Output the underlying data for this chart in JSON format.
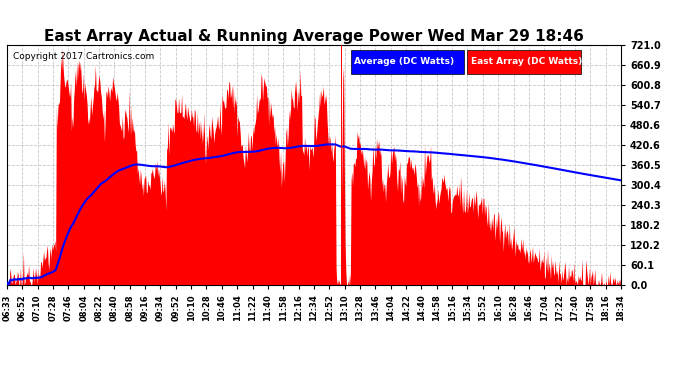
{
  "title": "East Array Actual & Running Average Power Wed Mar 29 18:46",
  "copyright": "Copyright 2017 Cartronics.com",
  "ylabel_right_max": 721.0,
  "ylabel_right_ticks": [
    0.0,
    60.1,
    120.2,
    180.2,
    240.3,
    300.4,
    360.5,
    420.6,
    480.6,
    540.7,
    600.8,
    660.9,
    721.0
  ],
  "legend_labels": [
    "Average (DC Watts)",
    "East Array (DC Watts)"
  ],
  "legend_colors_bg": [
    "blue",
    "red"
  ],
  "legend_colors_text": [
    "white",
    "white"
  ],
  "background_color": "#ffffff",
  "plot_bg_color": "#ffffff",
  "grid_color": "#c8c8c8",
  "area_color": "red",
  "line_color": "blue",
  "title_fontsize": 11,
  "x_tick_labels": [
    "06:33",
    "06:52",
    "07:10",
    "07:28",
    "07:46",
    "08:04",
    "08:22",
    "08:40",
    "08:58",
    "09:16",
    "09:34",
    "09:52",
    "10:10",
    "10:28",
    "10:46",
    "11:04",
    "11:22",
    "11:40",
    "11:58",
    "12:16",
    "12:34",
    "12:52",
    "13:10",
    "13:28",
    "13:46",
    "14:04",
    "14:22",
    "14:40",
    "14:58",
    "15:16",
    "15:34",
    "15:52",
    "16:10",
    "16:28",
    "16:46",
    "17:04",
    "17:22",
    "17:40",
    "17:58",
    "18:16",
    "18:34"
  ]
}
